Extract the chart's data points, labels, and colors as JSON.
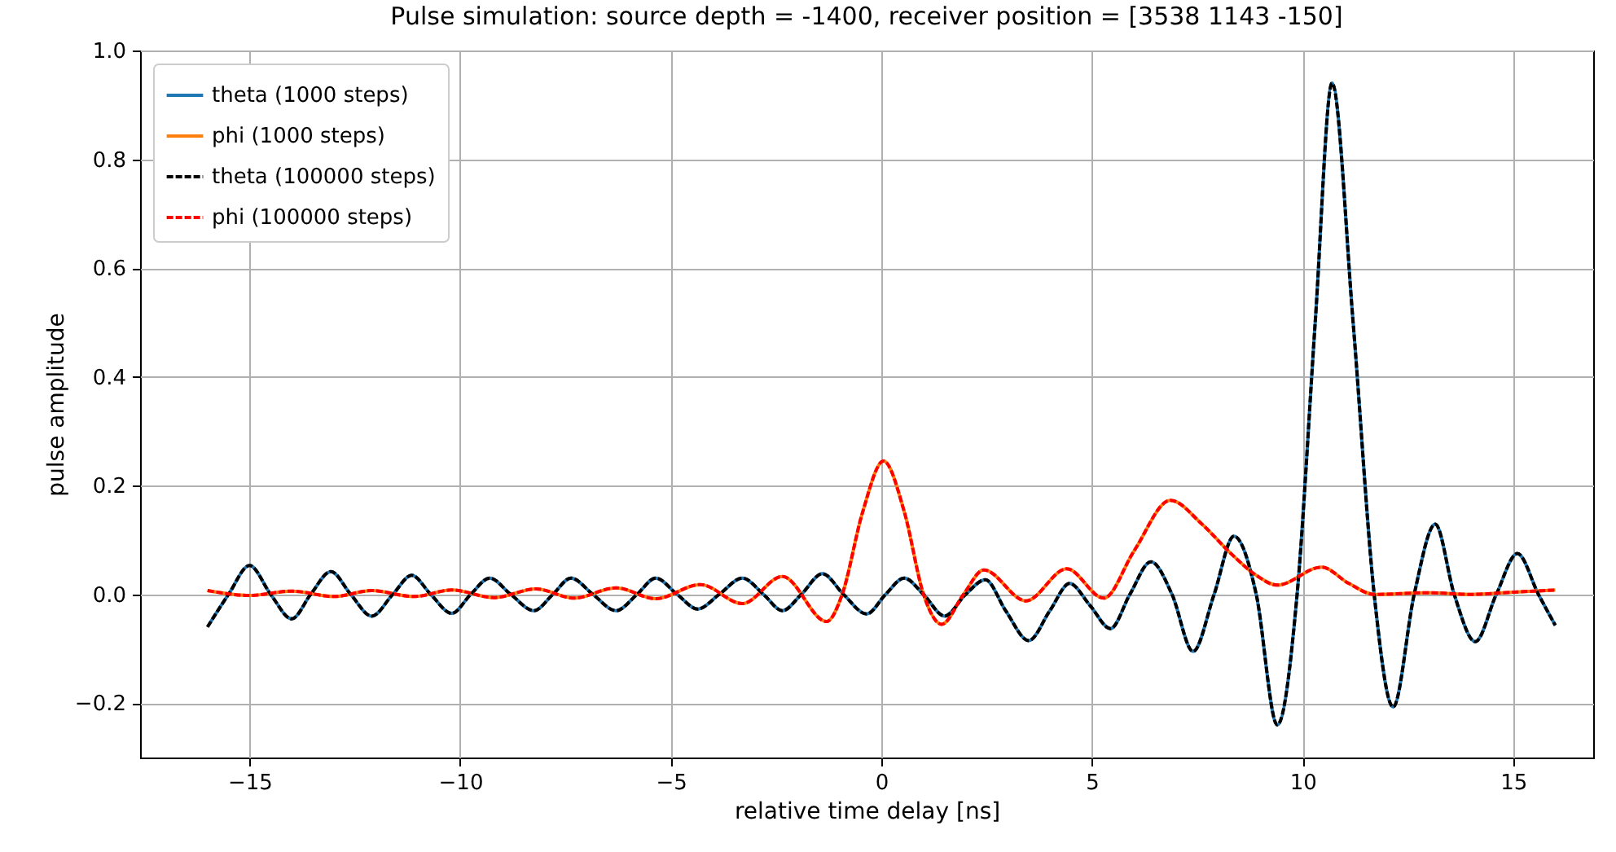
{
  "chart_data": {
    "type": "line",
    "title": "Pulse simulation: source depth = -1400, receiver position = [3538 1143 -150]",
    "xlabel": "relative time delay [ns]",
    "ylabel": "pulse amplitude",
    "xlim": [
      -17.6,
      16.9
    ],
    "ylim": [
      -0.3,
      1.0
    ],
    "xticks": [
      {
        "value": -15,
        "label": "−15"
      },
      {
        "value": -10,
        "label": "−10"
      },
      {
        "value": -5,
        "label": "−5"
      },
      0,
      5,
      10,
      15
    ],
    "yticks": [
      {
        "value": -0.2,
        "label": "−0.2"
      },
      {
        "value": 0,
        "label": "0.0"
      },
      {
        "value": 0.2,
        "label": "0.2"
      },
      {
        "value": 0.4,
        "label": "0.4"
      },
      {
        "value": 0.6,
        "label": "0.6"
      },
      {
        "value": 0.8,
        "label": "0.8"
      },
      {
        "value": 1.0,
        "label": "1.0"
      }
    ],
    "grid": true,
    "legend": "top left",
    "series": [
      {
        "name": "theta (1000 steps)",
        "color": "#1f77b4",
        "line_style": "solid",
        "x": [
          -16,
          -15.5,
          -15,
          -14.5,
          -14,
          -13.55,
          -13.07,
          -12.6,
          -12.1,
          -11.6,
          -11.15,
          -10.7,
          -10.2,
          -9.75,
          -9.3,
          -8.8,
          -8.25,
          -7.8,
          -7.37,
          -6.85,
          -6.3,
          -5.8,
          -5.36,
          -4.85,
          -4.36,
          -3.85,
          -3.3,
          -2.8,
          -2.35,
          -1.9,
          -1.4,
          -0.9,
          -0.35,
          0.1,
          0.54,
          1.0,
          1.5,
          2.0,
          2.47,
          2.95,
          3.5,
          4.0,
          4.47,
          4.95,
          5.44,
          5.9,
          6.4,
          6.9,
          7.4,
          7.9,
          8.37,
          8.9,
          9.4,
          9.87,
          10.3,
          10.7,
          11.2,
          11.7,
          12.15,
          12.65,
          13.15,
          13.6,
          14.1,
          14.6,
          15.1,
          15.6,
          16
        ],
        "values": [
          -0.06,
          0,
          0.053,
          0,
          -0.045,
          0,
          0.042,
          0,
          -0.04,
          0,
          0.035,
          0,
          -0.035,
          0,
          0.03,
          0,
          -0.03,
          0,
          0.03,
          0,
          -0.03,
          0,
          0.03,
          0,
          -0.027,
          0,
          0.03,
          0,
          -0.03,
          0,
          0.038,
          0,
          -0.036,
          0,
          0.03,
          0,
          -0.04,
          0,
          0.027,
          -0.03,
          -0.085,
          -0.03,
          0.02,
          -0.02,
          -0.063,
          0,
          0.06,
          0,
          -0.105,
          0,
          0.107,
          0,
          -0.24,
          0,
          0.5,
          0.94,
          0.5,
          0,
          -0.207,
          0,
          0.129,
          0,
          -0.087,
          0,
          0.075,
          0,
          -0.057
        ]
      },
      {
        "name": "phi (1000 steps)",
        "color": "#ff7f0e",
        "line_style": "solid",
        "x": [
          -16,
          -15,
          -14,
          -13,
          -12.1,
          -11.1,
          -10.2,
          -9.2,
          -8.2,
          -7.3,
          -6.3,
          -5.36,
          -4.3,
          -3.3,
          -2.35,
          -1.3,
          -0.93,
          -0.45,
          0.05,
          0.55,
          1.0,
          1.43,
          1.95,
          2.43,
          3.43,
          4.4,
          5.28,
          6.0,
          6.86,
          7.6,
          8.3,
          8.9,
          9.4,
          10.45,
          11.1,
          11.7,
          13,
          14,
          15,
          16
        ],
        "values": [
          0.007,
          -0.002,
          0.006,
          -0.004,
          0.007,
          -0.004,
          0.008,
          -0.006,
          0.01,
          -0.007,
          0.012,
          -0.008,
          0.018,
          -0.017,
          0.033,
          -0.05,
          0,
          0.15,
          0.245,
          0.15,
          0,
          -0.055,
          0,
          0.045,
          -0.012,
          0.047,
          -0.007,
          0.08,
          0.173,
          0.13,
          0.075,
          0.035,
          0.017,
          0.05,
          0.02,
          0,
          0.003,
          0,
          0.004,
          0.008
        ]
      },
      {
        "name": "theta (100000 steps)",
        "color": "#000000",
        "line_style": "dashed",
        "x": [
          -16,
          -15.5,
          -15,
          -14.5,
          -14,
          -13.55,
          -13.07,
          -12.6,
          -12.1,
          -11.6,
          -11.15,
          -10.7,
          -10.2,
          -9.75,
          -9.3,
          -8.8,
          -8.25,
          -7.8,
          -7.37,
          -6.85,
          -6.3,
          -5.8,
          -5.36,
          -4.85,
          -4.36,
          -3.85,
          -3.3,
          -2.8,
          -2.35,
          -1.9,
          -1.4,
          -0.9,
          -0.35,
          0.1,
          0.54,
          1.0,
          1.5,
          2.0,
          2.47,
          2.95,
          3.5,
          4.0,
          4.47,
          4.95,
          5.44,
          5.9,
          6.4,
          6.9,
          7.4,
          7.9,
          8.37,
          8.9,
          9.4,
          9.87,
          10.3,
          10.7,
          11.2,
          11.7,
          12.15,
          12.65,
          13.15,
          13.6,
          14.1,
          14.6,
          15.1,
          15.6,
          16
        ],
        "values": [
          -0.06,
          0,
          0.053,
          0,
          -0.045,
          0,
          0.042,
          0,
          -0.04,
          0,
          0.035,
          0,
          -0.035,
          0,
          0.03,
          0,
          -0.03,
          0,
          0.03,
          0,
          -0.03,
          0,
          0.03,
          0,
          -0.027,
          0,
          0.03,
          0,
          -0.03,
          0,
          0.038,
          0,
          -0.036,
          0,
          0.03,
          0,
          -0.04,
          0,
          0.027,
          -0.03,
          -0.085,
          -0.03,
          0.02,
          -0.02,
          -0.063,
          0,
          0.06,
          0,
          -0.105,
          0,
          0.107,
          0,
          -0.24,
          0,
          0.5,
          0.94,
          0.5,
          0,
          -0.207,
          0,
          0.129,
          0,
          -0.087,
          0,
          0.075,
          0,
          -0.057
        ]
      },
      {
        "name": "phi (100000 steps)",
        "color": "#ff0000",
        "line_style": "dashed",
        "x": [
          -16,
          -15,
          -14,
          -13,
          -12.1,
          -11.1,
          -10.2,
          -9.2,
          -8.2,
          -7.3,
          -6.3,
          -5.36,
          -4.3,
          -3.3,
          -2.35,
          -1.3,
          -0.93,
          -0.45,
          0.05,
          0.55,
          1.0,
          1.43,
          1.95,
          2.43,
          3.43,
          4.4,
          5.28,
          6.0,
          6.86,
          7.6,
          8.3,
          8.9,
          9.4,
          10.45,
          11.1,
          11.7,
          13,
          14,
          15,
          16
        ],
        "values": [
          0.007,
          -0.002,
          0.006,
          -0.004,
          0.007,
          -0.004,
          0.008,
          -0.006,
          0.01,
          -0.007,
          0.012,
          -0.008,
          0.018,
          -0.017,
          0.033,
          -0.05,
          0,
          0.15,
          0.245,
          0.15,
          0,
          -0.055,
          0,
          0.045,
          -0.012,
          0.047,
          -0.007,
          0.08,
          0.173,
          0.13,
          0.075,
          0.035,
          0.017,
          0.05,
          0.02,
          0,
          0.003,
          0,
          0.004,
          0.008
        ]
      }
    ]
  }
}
